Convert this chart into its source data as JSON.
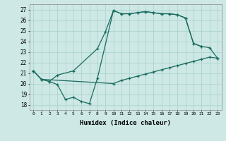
{
  "title": "",
  "xlabel": "Humidex (Indice chaleur)",
  "ylabel": "",
  "bg_color": "#cde8e5",
  "line_color": "#1a6b60",
  "grid_color": "#afd4cf",
  "xlim": [
    -0.5,
    23.5
  ],
  "ylim": [
    17.5,
    27.5
  ],
  "xticks": [
    0,
    1,
    2,
    3,
    4,
    5,
    6,
    7,
    8,
    9,
    10,
    11,
    12,
    13,
    14,
    15,
    16,
    17,
    18,
    19,
    20,
    21,
    22,
    23
  ],
  "yticks": [
    18,
    19,
    20,
    21,
    22,
    23,
    24,
    25,
    26,
    27
  ],
  "series": [
    {
      "x": [
        0,
        1,
        2,
        3,
        4,
        5,
        6,
        7,
        8,
        10,
        11,
        12,
        13,
        14,
        15,
        16,
        17,
        18,
        19,
        20,
        21
      ],
      "y": [
        21.2,
        20.4,
        20.2,
        19.9,
        18.5,
        18.7,
        18.3,
        18.1,
        20.5,
        26.9,
        26.6,
        26.6,
        26.7,
        26.8,
        26.7,
        26.6,
        26.6,
        26.5,
        26.2,
        23.8,
        23.5
      ]
    },
    {
      "x": [
        0,
        1,
        2,
        3,
        5,
        8,
        9,
        10,
        11,
        12,
        13,
        14,
        15,
        16,
        17,
        18,
        19,
        20,
        21,
        22,
        23
      ],
      "y": [
        21.2,
        20.4,
        20.2,
        20.8,
        21.2,
        23.3,
        24.9,
        26.9,
        26.6,
        26.6,
        26.7,
        26.8,
        26.7,
        26.6,
        26.6,
        26.5,
        26.2,
        23.8,
        23.5,
        23.4,
        22.4
      ]
    },
    {
      "x": [
        0,
        1,
        10,
        11,
        12,
        13,
        14,
        15,
        16,
        17,
        18,
        19,
        20,
        21,
        22,
        23
      ],
      "y": [
        21.2,
        20.4,
        20.0,
        20.3,
        20.5,
        20.7,
        20.9,
        21.1,
        21.3,
        21.5,
        21.7,
        21.9,
        22.1,
        22.3,
        22.5,
        22.4
      ]
    }
  ]
}
